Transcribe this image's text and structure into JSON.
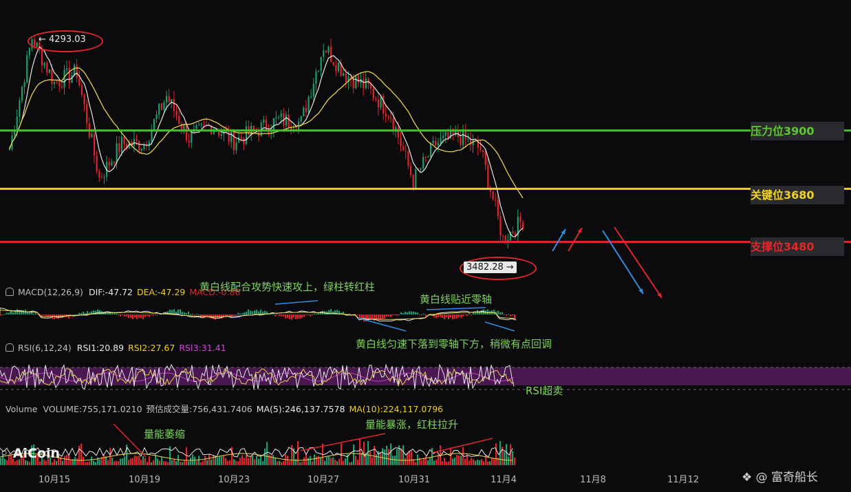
{
  "chart_data": {
    "type": "candlestick",
    "title": "",
    "x_ticks": [
      "10月15",
      "10月19",
      "10月23",
      "10月27",
      "10月31",
      "11月4",
      "11月8",
      "11月12"
    ],
    "price_range": [
      3380,
      4340
    ],
    "high_marker": "4293.03",
    "low_marker": "3482.28",
    "levels": [
      {
        "label": "压力位3900",
        "value": 3900,
        "color": "#43c02a"
      },
      {
        "label": "关键位3680",
        "value": 3680,
        "color": "#f0d020"
      },
      {
        "label": "支撑位3480",
        "value": 3480,
        "color": "#e0262a"
      }
    ],
    "close_series": [
      {
        "date": "10/13",
        "v": 3830
      },
      {
        "date": "10/14",
        "v": 4250
      },
      {
        "date": "10/15",
        "v": 4080
      },
      {
        "date": "10/16",
        "v": 4120
      },
      {
        "date": "10/17",
        "v": 3720
      },
      {
        "date": "10/18",
        "v": 3850
      },
      {
        "date": "10/19",
        "v": 3850
      },
      {
        "date": "10/20",
        "v": 4030
      },
      {
        "date": "10/21",
        "v": 3870
      },
      {
        "date": "10/22",
        "v": 3920
      },
      {
        "date": "10/23",
        "v": 3860
      },
      {
        "date": "10/24",
        "v": 3900
      },
      {
        "date": "10/25",
        "v": 3940
      },
      {
        "date": "10/26",
        "v": 3930
      },
      {
        "date": "10/27",
        "v": 4220
      },
      {
        "date": "10/28",
        "v": 4110
      },
      {
        "date": "10/29",
        "v": 4060
      },
      {
        "date": "10/30",
        "v": 3960
      },
      {
        "date": "10/31",
        "v": 3710
      },
      {
        "date": "11/1",
        "v": 3850
      },
      {
        "date": "11/2",
        "v": 3880
      },
      {
        "date": "11/3",
        "v": 3830
      },
      {
        "date": "11/4",
        "v": 3490
      },
      {
        "date": "11/5",
        "v": 3570
      }
    ],
    "macd": {
      "params": "MACD(12,26,9)",
      "dif": "DIF:-47.72",
      "dea": "DEA:-47.29",
      "macd": "MACD:-0.86"
    },
    "rsi": {
      "params": "RSI(6,12,24)",
      "rsi1": "RSI1:20.89",
      "rsi2": "RSI2:27.67",
      "rsi3": "RSI3:31.41"
    },
    "volume": {
      "title": "Volume",
      "volume": "VOLUME:755,171.0210",
      "estimate": "预估成交量:756,431.7406",
      "ma5": "MA(5):246,137.7578",
      "ma10": "MA(10):224,117.0796"
    }
  },
  "annotations": {
    "macd_top": "黄白线配合攻势快速攻上，绿柱转红柱",
    "macd_zero": "黄白线贴近零轴",
    "macd_bottom": "黄白线匀速下落到零轴下方，稍微有点回调",
    "rsi": "RSI超卖",
    "vol_shrink": "量能萎缩",
    "vol_surge": "量能暴涨，红柱拉升"
  },
  "branding": {
    "logo": "AiCoin",
    "watermark": "@ 富奇船长"
  },
  "colors": {
    "up": "#1f9e6e",
    "down": "#e0262a",
    "ma_white": "#e8e8e8",
    "ma_yellow": "#e8d44a",
    "rsi_band": "#4a1850"
  }
}
